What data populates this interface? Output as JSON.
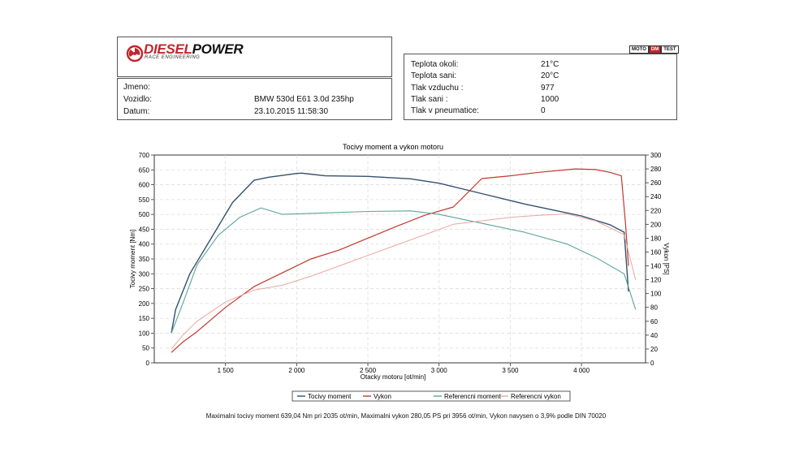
{
  "brand": {
    "name_part1": "DIESEL",
    "name_part2": "POWER",
    "tagline": "RACE ENGINEERING"
  },
  "badge": {
    "left": "MOTO",
    "mid": "DM",
    "right": "TEST"
  },
  "vehicle": {
    "name_label": "Jmeno:",
    "name_value": "",
    "vehicle_label": "Vozidlo:",
    "vehicle_value": "BMW 530d E61 3.0d 235hp",
    "date_label": "Datum:",
    "date_value": "23.10.2015 11:58:30"
  },
  "conditions": [
    {
      "label": "Teplota okoli:",
      "value": "21°C"
    },
    {
      "label": "Teplota sani:",
      "value": "20°C"
    },
    {
      "label": "Tlak vzduchu :",
      "value": "977"
    },
    {
      "label": "Tlak sani :",
      "value": "1000"
    },
    {
      "label": "Tlak v pneumatice:",
      "value": "0"
    }
  ],
  "colors": {
    "torque": "#34506e",
    "power": "#c0392b",
    "ref_torque": "#5aa596",
    "ref_power": "#e6a8a0",
    "grid": "#dddddd"
  },
  "chart_data": {
    "type": "line",
    "title": "Tocivy moment a vykon motoru",
    "xlabel": "Otacky motoru [ot/min]",
    "ylabel": "Tocivy moment [Nm]",
    "y2label": "Vykon [PS]",
    "xlim": [
      1000,
      4450
    ],
    "ylim": [
      0,
      700
    ],
    "y2lim": [
      0,
      300
    ],
    "x_ticks": [
      1500,
      2000,
      2500,
      3000,
      3500,
      4000
    ],
    "x_tick_labels": [
      "1 500",
      "2 000",
      "2 500",
      "3 000",
      "3 500",
      "4 000"
    ],
    "y_ticks": [
      0,
      50,
      100,
      150,
      200,
      250,
      300,
      350,
      400,
      450,
      500,
      550,
      600,
      650,
      700
    ],
    "y2_ticks": [
      0,
      20,
      40,
      60,
      80,
      100,
      120,
      140,
      160,
      180,
      200,
      220,
      240,
      260,
      280,
      300
    ],
    "grid": true,
    "legend_position": "bottom",
    "series": [
      {
        "name": "Tocivy moment",
        "axis": "left",
        "x": [
          1120,
          1150,
          1250,
          1400,
          1550,
          1700,
          1800,
          2000,
          2035,
          2200,
          2500,
          2800,
          3000,
          3300,
          3600,
          3800,
          4000,
          4200,
          4300,
          4330
        ],
        "y": [
          100,
          180,
          300,
          420,
          540,
          615,
          625,
          638,
          639,
          630,
          628,
          620,
          605,
          570,
          535,
          515,
          495,
          465,
          440,
          240
        ]
      },
      {
        "name": "Vykon",
        "axis": "right",
        "x": [
          1120,
          1200,
          1300,
          1500,
          1700,
          1900,
          2100,
          2300,
          2500,
          2700,
          2900,
          3100,
          3300,
          3500,
          3700,
          3956,
          4100,
          4200,
          4280,
          4310,
          4330
        ],
        "y": [
          15,
          30,
          45,
          80,
          110,
          130,
          150,
          163,
          180,
          197,
          213,
          225,
          266,
          270,
          275,
          280,
          279,
          275,
          270,
          200,
          140
        ]
      },
      {
        "name": "Referencni moment",
        "axis": "left",
        "x": [
          1120,
          1200,
          1300,
          1450,
          1600,
          1750,
          1900,
          2200,
          2500,
          2800,
          3000,
          3300,
          3600,
          3900,
          4100,
          4300,
          4380
        ],
        "y": [
          100,
          200,
          330,
          430,
          490,
          522,
          500,
          505,
          510,
          512,
          500,
          470,
          440,
          400,
          355,
          300,
          180
        ]
      },
      {
        "name": "Referencni vykon",
        "axis": "right",
        "x": [
          1120,
          1200,
          1300,
          1500,
          1700,
          1900,
          2100,
          2300,
          2500,
          2700,
          2900,
          3100,
          3300,
          3500,
          3700,
          3900,
          4100,
          4300,
          4380
        ],
        "y": [
          20,
          40,
          60,
          88,
          105,
          112,
          125,
          140,
          155,
          170,
          185,
          200,
          205,
          210,
          213,
          215,
          205,
          185,
          120
        ]
      }
    ]
  },
  "footer": "Maximalni tocivy moment 639,04 Nm pri 2035 ot/min,  Maximalni vykon 280,05 PS pri 3956 ot/min,  Vykon navysen o 3,9% podle DIN 70020"
}
